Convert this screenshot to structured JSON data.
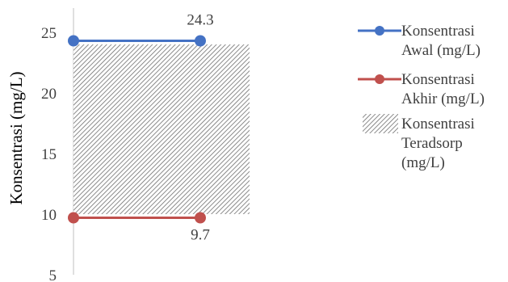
{
  "chart_data": {
    "type": "line",
    "ylabel": "Konsentrasi (mg/L)",
    "xlabel": "",
    "ylim": [
      5,
      27
    ],
    "yticks": [
      5,
      10,
      15,
      20,
      25
    ],
    "x_points": 2,
    "series": [
      {
        "name": "Konsentrasi Awal (mg/L)",
        "legend_lines": [
          "Konsentrasi",
          "Awal (mg/L)"
        ],
        "values": [
          24.3,
          24.3
        ],
        "data_label": "24.3",
        "color": "#4472C4"
      },
      {
        "name": "Konsentrasi Akhir (mg/L)",
        "legend_lines": [
          "Konsentrasi",
          "Akhir (mg/L)"
        ],
        "values": [
          9.7,
          9.7
        ],
        "data_label": "9.7",
        "color": "#C0504D"
      }
    ],
    "area": {
      "name": "Konsentrasi Teradsorp (mg/L)",
      "legend_lines": [
        "Konsentrasi",
        "Teradsorp",
        "(mg/L)"
      ],
      "value_top": 24.0,
      "value_bottom": 10.0,
      "pattern": "diagonal-hatch",
      "color": "#7f7f7f"
    },
    "legend_position": "right"
  }
}
